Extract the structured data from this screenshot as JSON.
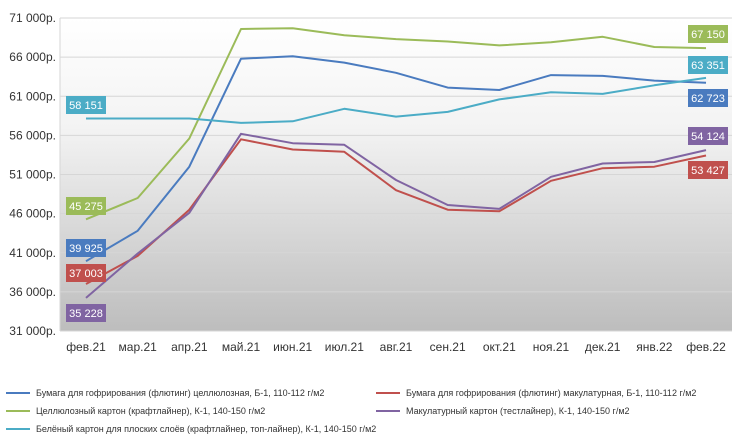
{
  "chart_data": {
    "type": "line",
    "title": "",
    "xlabel": "",
    "ylabel": "",
    "categories": [
      "фев.21",
      "мар.21",
      "апр.21",
      "май.21",
      "июн.21",
      "июл.21",
      "авг.21",
      "сен.21",
      "окт.21",
      "ноя.21",
      "дек.21",
      "янв.22",
      "фев.22"
    ],
    "ylim": [
      31000,
      71000
    ],
    "yticks": [
      31000,
      36000,
      41000,
      46000,
      51000,
      56000,
      61000,
      66000,
      71000
    ],
    "ytick_labels": [
      "31 000р.",
      "36 000р.",
      "41 000р.",
      "46 000р.",
      "51 000р.",
      "56 000р.",
      "61 000р.",
      "66 000р.",
      "71 000р."
    ],
    "background": "gradient white to gray",
    "legend_position": "bottom",
    "series": [
      {
        "name": "Бумага для гофрирования (флютинг) целлюлозная, Б-1, 110-112 г/м2",
        "color": "#4a7bbf",
        "values": [
          39925,
          43800,
          52000,
          65800,
          66100,
          65300,
          64000,
          62100,
          61800,
          63700,
          63600,
          63000,
          62723
        ],
        "start_label": "39 925",
        "end_label": "62 723"
      },
      {
        "name": "Бумага для гофрирования (флютинг) макулатурная, Б-1, 110-112 г/м2",
        "color": "#c0504d",
        "values": [
          37003,
          40600,
          46500,
          55500,
          54200,
          53900,
          49000,
          46500,
          46300,
          50200,
          51800,
          52000,
          53427
        ],
        "start_label": "37 003",
        "end_label": "53 427"
      },
      {
        "name": "Целлюлозный картон (крафтлайнер), К-1, 140-150 г/м2",
        "color": "#9bbb59",
        "values": [
          45275,
          48000,
          55600,
          69600,
          69700,
          68800,
          68300,
          68000,
          67500,
          67900,
          68600,
          67300,
          67150
        ],
        "start_label": "45 275",
        "end_label": "67 150"
      },
      {
        "name": "Макулатурный картон (тестлайнер), К-1, 140-150 г/м2",
        "color": "#8064a2",
        "values": [
          35228,
          40900,
          46100,
          56200,
          55000,
          54800,
          50300,
          47100,
          46600,
          50700,
          52400,
          52600,
          54124
        ],
        "start_label": "35 228",
        "end_label": "54 124"
      },
      {
        "name": "Белёный картон для плоских слоёв (крафтлайнер, топ-лайнер), К-1, 140-150 г/м2",
        "color": "#4bacc6",
        "values": [
          58151,
          58151,
          58151,
          57600,
          57800,
          59400,
          58400,
          59000,
          60600,
          61500,
          61300,
          62400,
          63351
        ],
        "start_label": "58 151",
        "end_label": "63 351"
      }
    ]
  }
}
